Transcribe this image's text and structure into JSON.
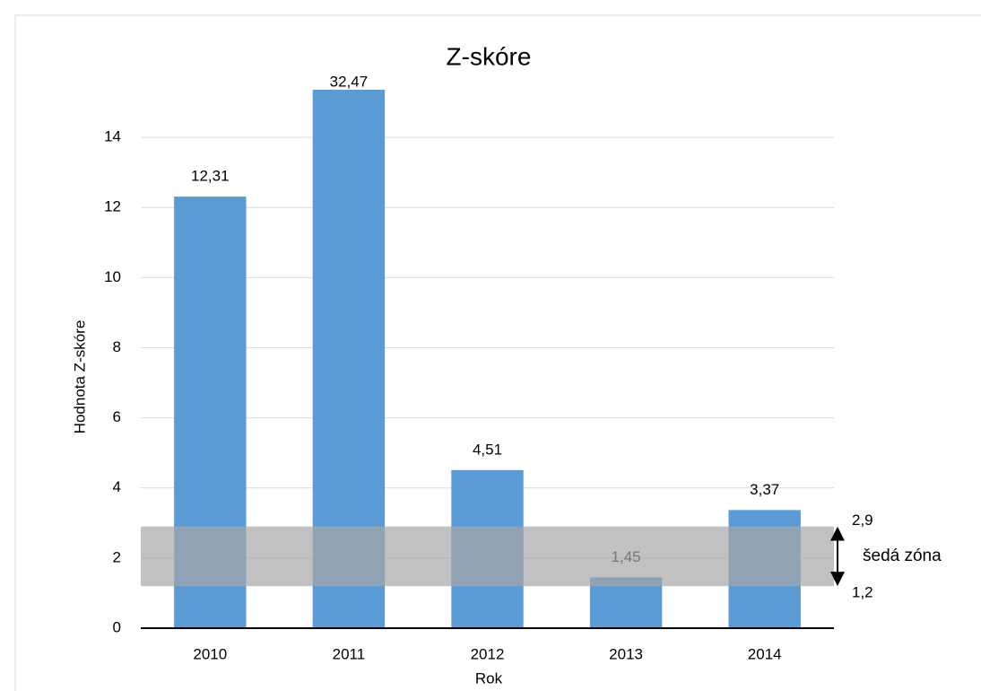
{
  "chart_data": {
    "type": "bar",
    "title": "Z-skóre",
    "x_label": "Rok",
    "y_label": "Hodnota Z-skóre",
    "categories": [
      "2010",
      "2011",
      "2012",
      "2013",
      "2014"
    ],
    "values": [
      12.31,
      32.47,
      4.51,
      1.45,
      3.37
    ],
    "value_labels": [
      "12,31",
      "32,47",
      "4,51",
      "1,45",
      "3,37"
    ],
    "color": "#5b9bd5",
    "ylim": [
      0,
      15
    ],
    "yticks": [
      0,
      2,
      4,
      6,
      8,
      10,
      12,
      14
    ],
    "grid": true,
    "zone": {
      "from": 1.2,
      "to": 2.9,
      "from_label": "1,2",
      "to_label": "2,9",
      "label": "šedá zóna",
      "color": "#a6a6a6"
    }
  }
}
